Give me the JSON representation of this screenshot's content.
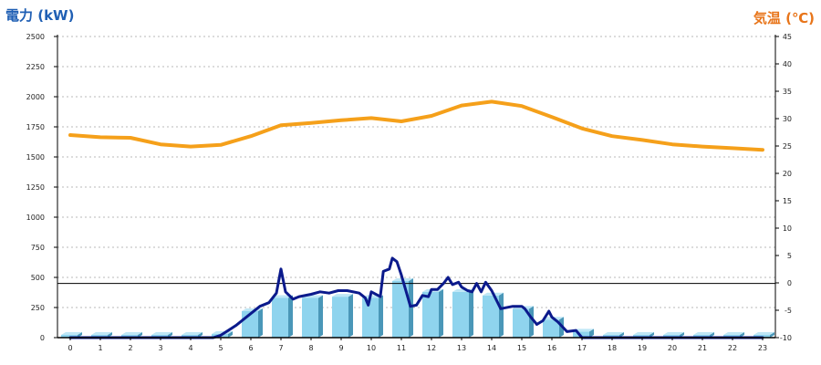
{
  "chart_data": {
    "type": "bar",
    "left_axis_title": "電力 (kW)",
    "right_axis_title": "気温 (℃)",
    "colors": {
      "left_title": "#1f5fb4",
      "right_title": "#e8751a",
      "bar": "#8fd4ee",
      "bar_side": "#4a97b8",
      "bar_top": "#bfe7f6",
      "power_line": "#0b1a8c",
      "temp_line": "#f5a01a",
      "grid": "#b8b8b8",
      "axis": "#000000"
    },
    "left_axis": {
      "min": 0,
      "max": 2500,
      "ticks": [
        0,
        250,
        500,
        750,
        1000,
        1250,
        1500,
        1750,
        2000,
        2250,
        2500
      ]
    },
    "right_axis": {
      "min": -10,
      "max": 45,
      "ticks": [
        -10,
        -5,
        0,
        5,
        10,
        15,
        20,
        25,
        30,
        35,
        40,
        45
      ]
    },
    "grid": "horizontal-dotted",
    "categories": [
      "0",
      "1",
      "2",
      "3",
      "4",
      "5",
      "6",
      "7",
      "8",
      "9",
      "10",
      "11",
      "12",
      "13",
      "14",
      "15",
      "16",
      "17",
      "18",
      "19",
      "20",
      "21",
      "22",
      "23"
    ],
    "bars_kw": [
      0,
      0,
      0,
      0,
      0,
      30,
      220,
      330,
      330,
      340,
      330,
      470,
      380,
      380,
      350,
      240,
      150,
      50,
      0,
      0,
      0,
      0,
      0,
      0
    ],
    "power_line_kw": [
      [
        0,
        0
      ],
      [
        1,
        0
      ],
      [
        2,
        0
      ],
      [
        3,
        0
      ],
      [
        4,
        0
      ],
      [
        4.75,
        0
      ],
      [
        5,
        20
      ],
      [
        5.5,
        100
      ],
      [
        6,
        200
      ],
      [
        6.3,
        260
      ],
      [
        6.6,
        290
      ],
      [
        6.85,
        370
      ],
      [
        7.0,
        570
      ],
      [
        7.15,
        380
      ],
      [
        7.4,
        320
      ],
      [
        7.6,
        340
      ],
      [
        8,
        360
      ],
      [
        8.3,
        380
      ],
      [
        8.6,
        370
      ],
      [
        8.9,
        390
      ],
      [
        9.2,
        390
      ],
      [
        9.6,
        370
      ],
      [
        9.8,
        330
      ],
      [
        9.9,
        270
      ],
      [
        10.0,
        380
      ],
      [
        10.3,
        340
      ],
      [
        10.4,
        550
      ],
      [
        10.6,
        570
      ],
      [
        10.7,
        660
      ],
      [
        10.85,
        630
      ],
      [
        11.0,
        520
      ],
      [
        11.3,
        260
      ],
      [
        11.5,
        270
      ],
      [
        11.7,
        350
      ],
      [
        11.9,
        340
      ],
      [
        12.0,
        400
      ],
      [
        12.2,
        400
      ],
      [
        12.4,
        450
      ],
      [
        12.55,
        500
      ],
      [
        12.7,
        440
      ],
      [
        12.9,
        460
      ],
      [
        13.0,
        420
      ],
      [
        13.2,
        390
      ],
      [
        13.35,
        380
      ],
      [
        13.5,
        450
      ],
      [
        13.65,
        380
      ],
      [
        13.8,
        460
      ],
      [
        14.0,
        390
      ],
      [
        14.3,
        240
      ],
      [
        14.7,
        260
      ],
      [
        15.0,
        260
      ],
      [
        15.1,
        240
      ],
      [
        15.3,
        170
      ],
      [
        15.5,
        110
      ],
      [
        15.7,
        140
      ],
      [
        15.9,
        220
      ],
      [
        16.0,
        170
      ],
      [
        16.2,
        130
      ],
      [
        16.5,
        50
      ],
      [
        16.8,
        60
      ],
      [
        17.0,
        0
      ],
      [
        18,
        0
      ],
      [
        19,
        0
      ],
      [
        20,
        0
      ],
      [
        21,
        0
      ],
      [
        22,
        0
      ],
      [
        23,
        0
      ]
    ],
    "temp_line_c": [
      [
        0,
        27.0
      ],
      [
        1,
        26.6
      ],
      [
        2,
        26.5
      ],
      [
        3,
        25.3
      ],
      [
        4,
        24.9
      ],
      [
        5,
        25.2
      ],
      [
        6,
        26.8
      ],
      [
        7,
        28.8
      ],
      [
        8,
        29.2
      ],
      [
        9,
        29.7
      ],
      [
        10,
        30.1
      ],
      [
        11,
        29.5
      ],
      [
        12,
        30.5
      ],
      [
        13,
        32.4
      ],
      [
        14,
        33.1
      ],
      [
        15,
        32.3
      ],
      [
        16,
        30.3
      ],
      [
        17,
        28.2
      ],
      [
        18,
        26.8
      ],
      [
        19,
        26.1
      ],
      [
        20,
        25.3
      ],
      [
        21,
        24.9
      ],
      [
        22,
        24.6
      ],
      [
        23,
        24.3
      ]
    ],
    "reference_line_kw": 450
  }
}
